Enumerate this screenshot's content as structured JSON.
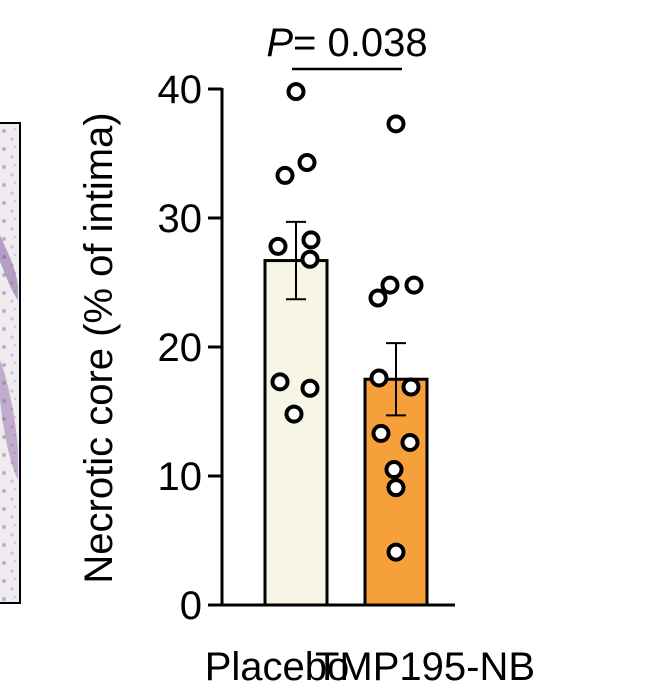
{
  "chart_data": {
    "type": "bar",
    "categories": [
      "Placebo",
      "TMP195-NB"
    ],
    "values": [
      26.7,
      17.5
    ],
    "errors": [
      3.0,
      2.8
    ],
    "bar_colors": [
      "#f7f5e3",
      "#f6a03c"
    ],
    "points": [
      [
        39.8,
        33.3,
        34.3,
        27.8,
        28.3,
        26.8,
        17.3,
        16.8,
        14.8
      ],
      [
        37.3,
        23.8,
        24.8,
        24.8,
        17.6,
        16.9,
        13.3,
        12.6,
        10.5,
        9.1,
        4.1
      ]
    ],
    "ylabel": "Necrotic core (% of intima)",
    "yticks": [
      "0",
      "10",
      "20",
      "30",
      "40"
    ],
    "ylim": [
      0,
      40
    ],
    "grid": false,
    "annotation": {
      "prefix": "P",
      "text": "= 0.038"
    }
  },
  "colors": {
    "axis": "#000000",
    "point_fill": "#ffffff",
    "point_stroke": "#000000",
    "panel_border": "#000000",
    "histology_base": "#e8e4ec",
    "histology_stain": "#8a5fa0"
  }
}
